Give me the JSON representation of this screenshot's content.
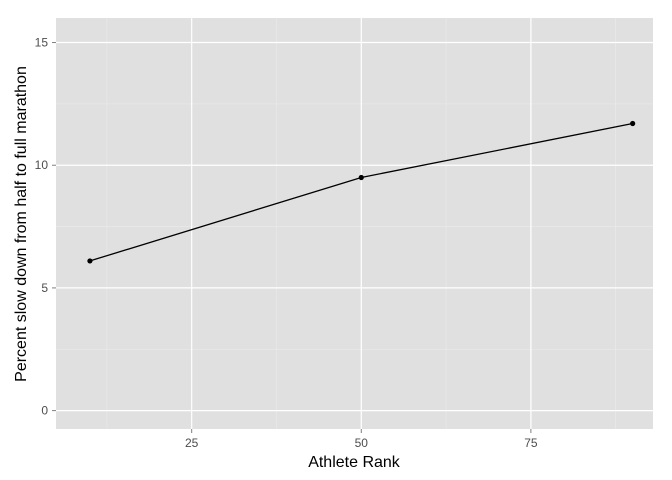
{
  "chart_data": {
    "type": "line",
    "title": "",
    "xlabel": "Athlete Rank",
    "ylabel": "Percent slow down from half to full marathon",
    "xlim": [
      5,
      93
    ],
    "ylim": [
      -0.75,
      16
    ],
    "x_ticks": [
      25,
      50,
      75
    ],
    "y_ticks": [
      0,
      5,
      10,
      15
    ],
    "x_tick_labels": [
      "25",
      "50",
      "75"
    ],
    "y_tick_labels": [
      "0",
      "5",
      "10",
      "15"
    ],
    "grid": true,
    "legend": "none",
    "series": [
      {
        "x": [
          10,
          50,
          90
        ],
        "y": [
          6.1,
          9.5,
          11.7
        ],
        "color": "#000000"
      }
    ],
    "colors": {
      "panel_background": "#e0e0e0",
      "grid_major": "#ffffff",
      "grid_minor": "#ebebeb",
      "line": "#000000"
    }
  }
}
